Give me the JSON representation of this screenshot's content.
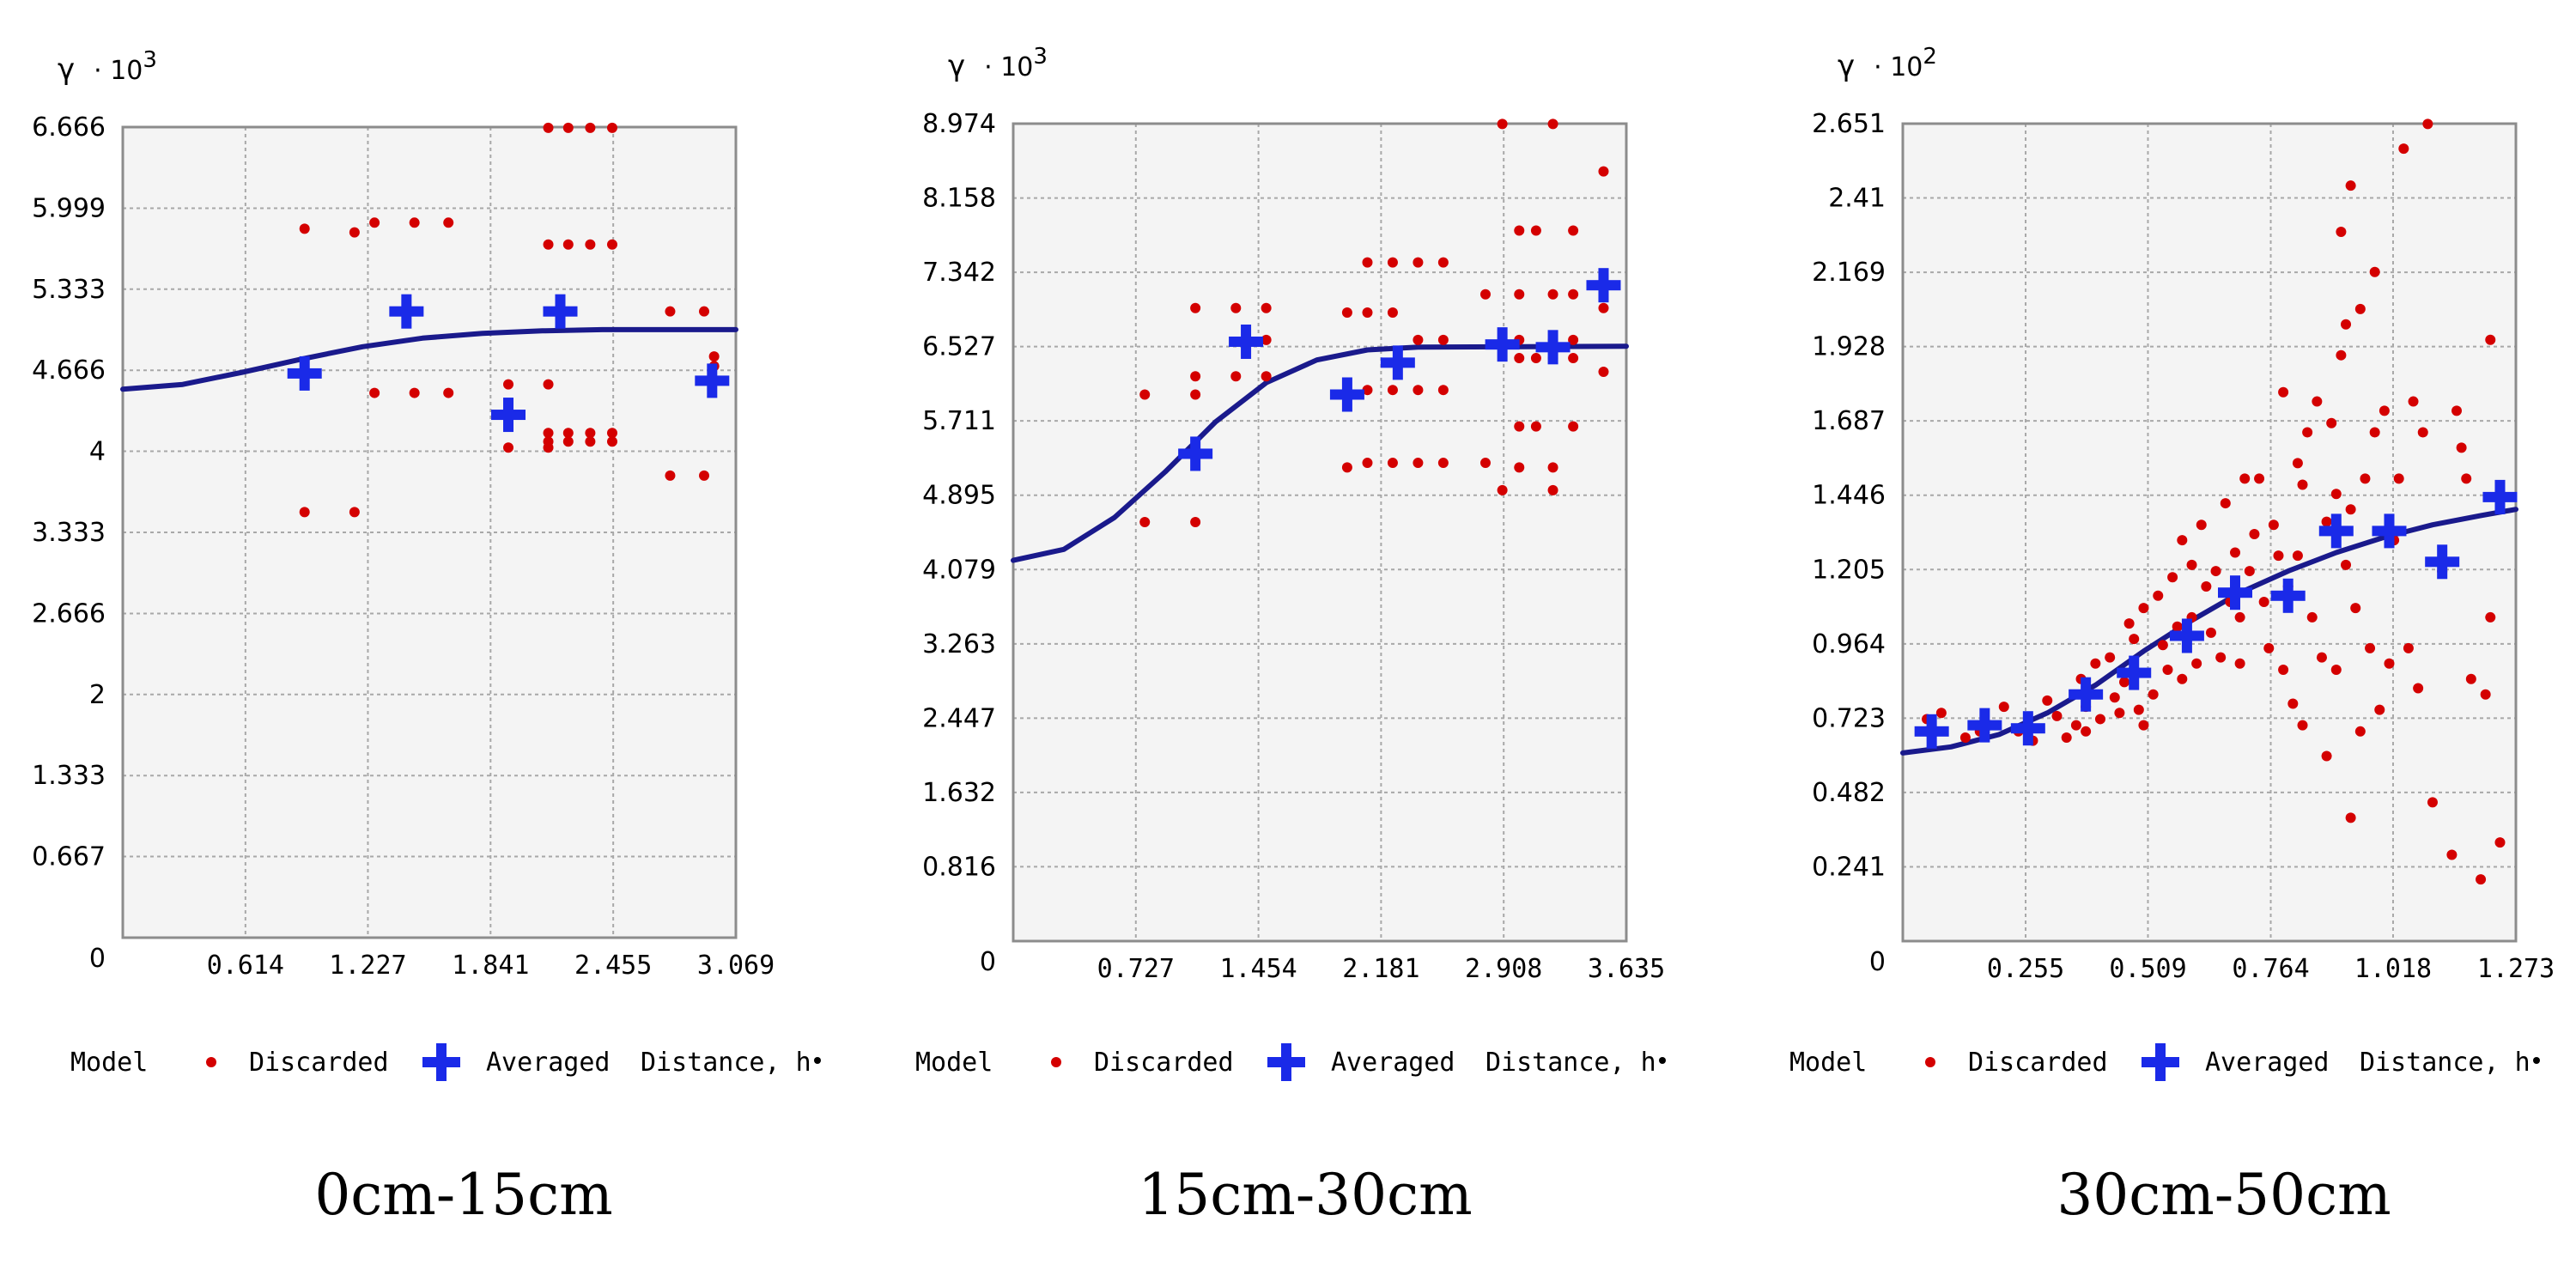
{
  "chart_data": [
    {
      "type": "scatter",
      "caption": "0cm-15cm",
      "ylabel": "γ",
      "yscale": "· 10",
      "yexp": "3",
      "xlim": [
        0,
        3.069
      ],
      "ylim": [
        0,
        6.666
      ],
      "xticks": [
        "0.614",
        "1.227",
        "1.841",
        "2.455",
        "3.069"
      ],
      "xtick_values": [
        0.614,
        1.227,
        1.841,
        2.455,
        3.069
      ],
      "yticks": [
        "0",
        "0.667",
        "1.333",
        "2",
        "2.666",
        "3.333",
        "4",
        "4.666",
        "5.333",
        "5.999",
        "6.666"
      ],
      "ytick_values": [
        0,
        0.667,
        1.333,
        2,
        2.666,
        3.333,
        4,
        4.666,
        5.333,
        5.999,
        6.666
      ],
      "legend": [
        "Model",
        "Discarded",
        "Averaged",
        "Distance, h"
      ],
      "model": [
        [
          0,
          4.51
        ],
        [
          0.3,
          4.55
        ],
        [
          0.6,
          4.65
        ],
        [
          0.9,
          4.76
        ],
        [
          1.2,
          4.86
        ],
        [
          1.5,
          4.93
        ],
        [
          1.8,
          4.97
        ],
        [
          2.1,
          4.99
        ],
        [
          2.4,
          5.0
        ],
        [
          3.069,
          5.0
        ]
      ],
      "discarded": [
        [
          0.91,
          5.83
        ],
        [
          0.91,
          3.5
        ],
        [
          1.16,
          5.8
        ],
        [
          1.16,
          3.5
        ],
        [
          1.26,
          5.88
        ],
        [
          1.26,
          4.48
        ],
        [
          1.46,
          5.88
        ],
        [
          1.46,
          4.48
        ],
        [
          1.63,
          5.88
        ],
        [
          1.63,
          4.48
        ],
        [
          1.93,
          4.55
        ],
        [
          1.93,
          4.03
        ],
        [
          2.13,
          5.7
        ],
        [
          2.13,
          4.55
        ],
        [
          2.13,
          4.15
        ],
        [
          2.13,
          4.08
        ],
        [
          2.13,
          4.03
        ],
        [
          2.13,
          6.66
        ],
        [
          2.23,
          6.66
        ],
        [
          2.23,
          5.7
        ],
        [
          2.23,
          4.15
        ],
        [
          2.23,
          4.08
        ],
        [
          2.34,
          6.66
        ],
        [
          2.34,
          5.7
        ],
        [
          2.34,
          4.15
        ],
        [
          2.34,
          4.08
        ],
        [
          2.45,
          6.66
        ],
        [
          2.45,
          5.7
        ],
        [
          2.45,
          4.15
        ],
        [
          2.45,
          4.08
        ],
        [
          2.74,
          5.15
        ],
        [
          2.74,
          3.8
        ],
        [
          2.91,
          5.15
        ],
        [
          2.91,
          3.8
        ],
        [
          2.96,
          4.78
        ],
        [
          2.96,
          4.7
        ]
      ],
      "averaged": [
        [
          0.91,
          4.64
        ],
        [
          1.42,
          5.15
        ],
        [
          1.93,
          4.3
        ],
        [
          2.19,
          5.15
        ],
        [
          2.95,
          4.58
        ]
      ]
    },
    {
      "type": "scatter",
      "caption": "15cm-30cm",
      "ylabel": "γ",
      "yscale": "· 10",
      "yexp": "3",
      "xlim": [
        0,
        3.635
      ],
      "ylim": [
        0,
        8.974
      ],
      "xticks": [
        "0.727",
        "1.454",
        "2.181",
        "2.908",
        "3.635"
      ],
      "xtick_values": [
        0.727,
        1.454,
        2.181,
        2.908,
        3.635
      ],
      "yticks": [
        "0",
        "0.816",
        "1.632",
        "2.447",
        "3.263",
        "4.079",
        "4.895",
        "5.711",
        "6.527",
        "7.342",
        "8.158",
        "8.974"
      ],
      "ytick_values": [
        0,
        0.816,
        1.632,
        2.447,
        3.263,
        4.079,
        4.895,
        5.711,
        6.527,
        7.342,
        8.158,
        8.974
      ],
      "legend": [
        "Model",
        "Discarded",
        "Averaged",
        "Distance, h"
      ],
      "model": [
        [
          0,
          4.18
        ],
        [
          0.3,
          4.3
        ],
        [
          0.6,
          4.65
        ],
        [
          0.9,
          5.15
        ],
        [
          1.2,
          5.7
        ],
        [
          1.5,
          6.13
        ],
        [
          1.8,
          6.38
        ],
        [
          2.1,
          6.49
        ],
        [
          2.4,
          6.52
        ],
        [
          3.635,
          6.53
        ]
      ],
      "discarded": [
        [
          0.78,
          6.0
        ],
        [
          0.78,
          4.6
        ],
        [
          1.08,
          6.95
        ],
        [
          1.08,
          6.2
        ],
        [
          1.08,
          6.0
        ],
        [
          1.08,
          4.6
        ],
        [
          1.32,
          6.95
        ],
        [
          1.32,
          6.2
        ],
        [
          1.5,
          6.95
        ],
        [
          1.5,
          6.6
        ],
        [
          1.5,
          6.2
        ],
        [
          1.98,
          6.9
        ],
        [
          1.98,
          5.2
        ],
        [
          2.1,
          7.45
        ],
        [
          2.1,
          6.9
        ],
        [
          2.1,
          6.05
        ],
        [
          2.1,
          5.25
        ],
        [
          2.25,
          7.45
        ],
        [
          2.25,
          6.9
        ],
        [
          2.25,
          5.25
        ],
        [
          2.25,
          6.05
        ],
        [
          2.4,
          7.45
        ],
        [
          2.4,
          6.6
        ],
        [
          2.4,
          6.05
        ],
        [
          2.4,
          5.25
        ],
        [
          2.55,
          7.45
        ],
        [
          2.55,
          6.6
        ],
        [
          2.55,
          6.05
        ],
        [
          2.55,
          5.25
        ],
        [
          2.8,
          7.1
        ],
        [
          2.8,
          5.25
        ],
        [
          2.9,
          8.97
        ],
        [
          2.9,
          4.95
        ],
        [
          3.0,
          7.8
        ],
        [
          3.0,
          7.1
        ],
        [
          3.0,
          6.6
        ],
        [
          3.0,
          6.4
        ],
        [
          3.0,
          5.65
        ],
        [
          3.0,
          5.2
        ],
        [
          3.1,
          7.8
        ],
        [
          3.1,
          6.4
        ],
        [
          3.1,
          5.65
        ],
        [
          3.2,
          8.97
        ],
        [
          3.2,
          7.1
        ],
        [
          3.2,
          6.6
        ],
        [
          3.2,
          6.4
        ],
        [
          3.2,
          5.2
        ],
        [
          3.2,
          4.95
        ],
        [
          3.32,
          7.8
        ],
        [
          3.32,
          7.1
        ],
        [
          3.32,
          6.6
        ],
        [
          3.32,
          6.4
        ],
        [
          3.32,
          5.65
        ],
        [
          3.5,
          8.45
        ],
        [
          3.5,
          6.95
        ],
        [
          3.5,
          6.25
        ]
      ],
      "averaged": [
        [
          1.08,
          5.35
        ],
        [
          1.38,
          6.58
        ],
        [
          1.98,
          6.0
        ],
        [
          2.28,
          6.35
        ],
        [
          2.9,
          6.55
        ],
        [
          3.2,
          6.52
        ],
        [
          3.5,
          7.2
        ]
      ]
    },
    {
      "type": "scatter",
      "caption": "30cm-50cm",
      "ylabel": "γ",
      "yscale": "· 10",
      "yexp": "2",
      "xlim": [
        0,
        1.273
      ],
      "ylim": [
        0,
        2.651
      ],
      "xticks": [
        "0.255",
        "0.509",
        "0.764",
        "1.018",
        "1.273"
      ],
      "xtick_values": [
        0.255,
        0.509,
        0.764,
        1.018,
        1.273
      ],
      "yticks": [
        "0",
        "0.241",
        "0.482",
        "0.723",
        "0.964",
        "1.205",
        "1.446",
        "1.687",
        "1.928",
        "2.169",
        "2.41",
        "2.651"
      ],
      "ytick_values": [
        0,
        0.241,
        0.482,
        0.723,
        0.964,
        1.205,
        1.446,
        1.687,
        1.928,
        2.169,
        2.41,
        2.651
      ],
      "legend": [
        "Model",
        "Discarded",
        "Averaged",
        "Distance, h"
      ],
      "model": [
        [
          0,
          0.61
        ],
        [
          0.1,
          0.63
        ],
        [
          0.2,
          0.67
        ],
        [
          0.3,
          0.74
        ],
        [
          0.4,
          0.83
        ],
        [
          0.5,
          0.94
        ],
        [
          0.6,
          1.04
        ],
        [
          0.7,
          1.13
        ],
        [
          0.8,
          1.2
        ],
        [
          0.9,
          1.26
        ],
        [
          1.0,
          1.31
        ],
        [
          1.1,
          1.35
        ],
        [
          1.2,
          1.38
        ],
        [
          1.273,
          1.4
        ]
      ],
      "discarded": [
        [
          0.05,
          0.72
        ],
        [
          0.05,
          0.68
        ],
        [
          0.08,
          0.74
        ],
        [
          0.13,
          0.66
        ],
        [
          0.16,
          0.68
        ],
        [
          0.18,
          0.7
        ],
        [
          0.21,
          0.76
        ],
        [
          0.24,
          0.68
        ],
        [
          0.27,
          0.65
        ],
        [
          0.3,
          0.78
        ],
        [
          0.32,
          0.73
        ],
        [
          0.34,
          0.66
        ],
        [
          0.36,
          0.7
        ],
        [
          0.37,
          0.85
        ],
        [
          0.38,
          0.76
        ],
        [
          0.38,
          0.68
        ],
        [
          0.4,
          0.9
        ],
        [
          0.41,
          0.72
        ],
        [
          0.43,
          0.92
        ],
        [
          0.44,
          0.79
        ],
        [
          0.45,
          0.74
        ],
        [
          0.46,
          0.84
        ],
        [
          0.47,
          1.03
        ],
        [
          0.48,
          0.98
        ],
        [
          0.49,
          0.75
        ],
        [
          0.5,
          1.08
        ],
        [
          0.5,
          0.7
        ],
        [
          0.52,
          0.8
        ],
        [
          0.53,
          1.12
        ],
        [
          0.54,
          0.96
        ],
        [
          0.55,
          0.88
        ],
        [
          0.56,
          1.18
        ],
        [
          0.57,
          1.02
        ],
        [
          0.58,
          0.85
        ],
        [
          0.58,
          1.3
        ],
        [
          0.6,
          1.22
        ],
        [
          0.6,
          1.05
        ],
        [
          0.61,
          0.9
        ],
        [
          0.62,
          1.35
        ],
        [
          0.63,
          1.15
        ],
        [
          0.64,
          1.0
        ],
        [
          0.65,
          1.2
        ],
        [
          0.66,
          0.92
        ],
        [
          0.67,
          1.42
        ],
        [
          0.68,
          1.1
        ],
        [
          0.69,
          1.26
        ],
        [
          0.7,
          1.05
        ],
        [
          0.7,
          0.9
        ],
        [
          0.71,
          1.5
        ],
        [
          0.72,
          1.2
        ],
        [
          0.73,
          1.32
        ],
        [
          0.74,
          1.5
        ],
        [
          0.75,
          1.1
        ],
        [
          0.76,
          0.95
        ],
        [
          0.77,
          1.35
        ],
        [
          0.78,
          1.25
        ],
        [
          0.79,
          0.88
        ],
        [
          0.79,
          1.78
        ],
        [
          0.8,
          1.15
        ],
        [
          0.81,
          0.77
        ],
        [
          0.82,
          1.55
        ],
        [
          0.82,
          1.25
        ],
        [
          0.83,
          1.48
        ],
        [
          0.83,
          0.7
        ],
        [
          0.84,
          1.65
        ],
        [
          0.85,
          1.05
        ],
        [
          0.86,
          1.75
        ],
        [
          0.87,
          0.92
        ],
        [
          0.88,
          1.36
        ],
        [
          0.88,
          0.6
        ],
        [
          0.89,
          1.68
        ],
        [
          0.9,
          1.45
        ],
        [
          0.9,
          0.88
        ],
        [
          0.91,
          1.9
        ],
        [
          0.91,
          2.3
        ],
        [
          0.92,
          2.0
        ],
        [
          0.92,
          1.22
        ],
        [
          0.93,
          1.4
        ],
        [
          0.93,
          2.45
        ],
        [
          0.94,
          1.08
        ],
        [
          0.95,
          2.05
        ],
        [
          0.95,
          0.68
        ],
        [
          0.96,
          1.5
        ],
        [
          0.97,
          0.95
        ],
        [
          0.98,
          1.65
        ],
        [
          0.98,
          2.17
        ],
        [
          0.99,
          0.75
        ],
        [
          1.0,
          1.72
        ],
        [
          1.01,
          0.9
        ],
        [
          1.02,
          1.3
        ],
        [
          1.03,
          1.5
        ],
        [
          1.04,
          2.57
        ],
        [
          1.05,
          0.95
        ],
        [
          1.06,
          1.75
        ],
        [
          1.07,
          0.82
        ],
        [
          1.08,
          1.65
        ],
        [
          1.09,
          2.65
        ],
        [
          1.1,
          0.45
        ],
        [
          1.12,
          1.2
        ],
        [
          1.14,
          0.28
        ],
        [
          1.15,
          1.72
        ],
        [
          1.16,
          1.6
        ],
        [
          1.17,
          1.5
        ],
        [
          1.18,
          0.85
        ],
        [
          1.2,
          0.2
        ],
        [
          1.21,
          0.8
        ],
        [
          1.22,
          1.95
        ],
        [
          1.22,
          1.05
        ],
        [
          1.24,
          0.32
        ],
        [
          0.93,
          0.4
        ]
      ],
      "averaged": [
        [
          0.06,
          0.68
        ],
        [
          0.17,
          0.7
        ],
        [
          0.26,
          0.69
        ],
        [
          0.38,
          0.8
        ],
        [
          0.48,
          0.87
        ],
        [
          0.59,
          0.99
        ],
        [
          0.69,
          1.13
        ],
        [
          0.8,
          1.12
        ],
        [
          0.9,
          1.33
        ],
        [
          1.01,
          1.33
        ],
        [
          1.12,
          1.23
        ],
        [
          1.24,
          1.44
        ]
      ]
    }
  ]
}
